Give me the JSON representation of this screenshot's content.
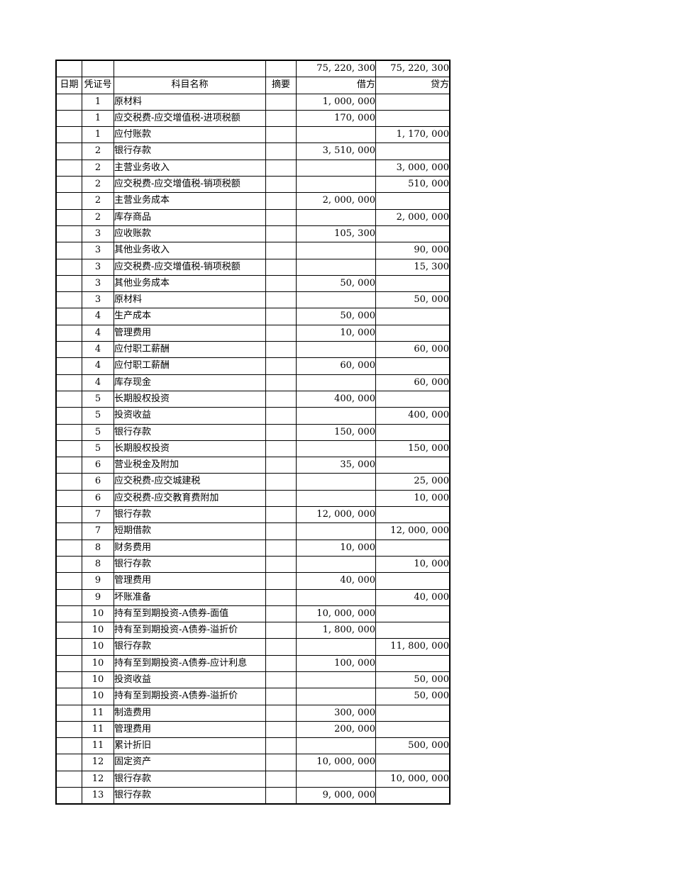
{
  "theme": {
    "background_color": "#ffffff",
    "grid_color": "#000000",
    "text_color": "#000000"
  },
  "table": {
    "totals_row": {
      "debit": "75, 220, 300",
      "credit": "75, 220, 300"
    },
    "columns": [
      {
        "key": "date",
        "label": "日期"
      },
      {
        "key": "voucher_no",
        "label": "凭证号"
      },
      {
        "key": "account",
        "label": "科目名称"
      },
      {
        "key": "summary",
        "label": "摘要"
      },
      {
        "key": "debit",
        "label": "借方"
      },
      {
        "key": "credit",
        "label": "贷方"
      }
    ],
    "rows": [
      {
        "voucher_no": "1",
        "account": "原材料",
        "debit": "1, 000, 000"
      },
      {
        "voucher_no": "1",
        "account": "应交税费-应交增值税-进项税额",
        "debit": "170, 000"
      },
      {
        "voucher_no": "1",
        "account": "应付账款",
        "credit": "1, 170, 000"
      },
      {
        "voucher_no": "2",
        "account": "银行存款",
        "debit": "3, 510, 000"
      },
      {
        "voucher_no": "2",
        "account": "主营业务收入",
        "credit": "3, 000, 000"
      },
      {
        "voucher_no": "2",
        "account": "应交税费-应交增值税-销项税额",
        "credit": "510, 000"
      },
      {
        "voucher_no": "2",
        "account": "主营业务成本",
        "debit": "2, 000, 000"
      },
      {
        "voucher_no": "2",
        "account": "库存商品",
        "credit": "2, 000, 000"
      },
      {
        "voucher_no": "3",
        "account": "应收账款",
        "debit": "105, 300"
      },
      {
        "voucher_no": "3",
        "account": "其他业务收入",
        "credit": "90, 000"
      },
      {
        "voucher_no": "3",
        "account": "应交税费-应交增值税-销项税额",
        "credit": "15, 300"
      },
      {
        "voucher_no": "3",
        "account": "其他业务成本",
        "debit": "50, 000"
      },
      {
        "voucher_no": "3",
        "account": "原材料",
        "credit": "50, 000"
      },
      {
        "voucher_no": "4",
        "account": "生产成本",
        "debit": "50, 000"
      },
      {
        "voucher_no": "4",
        "account": "管理费用",
        "debit": "10, 000"
      },
      {
        "voucher_no": "4",
        "account": "应付职工薪酬",
        "credit": "60, 000"
      },
      {
        "voucher_no": "4",
        "account": "应付职工薪酬",
        "debit": "60, 000"
      },
      {
        "voucher_no": "4",
        "account": "库存现金",
        "credit": "60, 000"
      },
      {
        "voucher_no": "5",
        "account": "长期股权投资",
        "debit": "400, 000"
      },
      {
        "voucher_no": "5",
        "account": "投资收益",
        "credit": "400, 000"
      },
      {
        "voucher_no": "5",
        "account": "银行存款",
        "debit": "150, 000"
      },
      {
        "voucher_no": "5",
        "account": "长期股权投资",
        "credit": "150, 000"
      },
      {
        "voucher_no": "6",
        "account": "营业税金及附加",
        "debit": "35, 000"
      },
      {
        "voucher_no": "6",
        "account": "应交税费-应交城建税",
        "credit": "25, 000"
      },
      {
        "voucher_no": "6",
        "account": "应交税费-应交教育费附加",
        "credit": "10, 000"
      },
      {
        "voucher_no": "7",
        "account": "银行存款",
        "debit": "12, 000, 000"
      },
      {
        "voucher_no": "7",
        "account": "短期借款",
        "credit": "12, 000, 000"
      },
      {
        "voucher_no": "8",
        "account": "财务费用",
        "debit": "10, 000"
      },
      {
        "voucher_no": "8",
        "account": "银行存款",
        "credit": "10, 000"
      },
      {
        "voucher_no": "9",
        "account": "管理费用",
        "debit": "40, 000"
      },
      {
        "voucher_no": "9",
        "account": "坏账准备",
        "credit": "40, 000"
      },
      {
        "voucher_no": "10",
        "account": "持有至到期投资-A债券-面值",
        "debit": "10, 000, 000"
      },
      {
        "voucher_no": "10",
        "account": "持有至到期投资-A债券-溢折价",
        "debit": "1, 800, 000"
      },
      {
        "voucher_no": "10",
        "account": "银行存款",
        "credit": "11, 800, 000"
      },
      {
        "voucher_no": "10",
        "account": "持有至到期投资-A债券-应计利息",
        "debit": "100, 000"
      },
      {
        "voucher_no": "10",
        "account": "投资收益",
        "credit": "50, 000"
      },
      {
        "voucher_no": "10",
        "account": "持有至到期投资-A债券-溢折价",
        "credit": "50, 000"
      },
      {
        "voucher_no": "11",
        "account": "制造费用",
        "debit": "300, 000"
      },
      {
        "voucher_no": "11",
        "account": "管理费用",
        "debit": "200, 000"
      },
      {
        "voucher_no": "11",
        "account": "累计折旧",
        "credit": "500, 000"
      },
      {
        "voucher_no": "12",
        "account": "固定资产",
        "debit": "10, 000, 000"
      },
      {
        "voucher_no": "12",
        "account": "银行存款",
        "credit": "10, 000, 000"
      },
      {
        "voucher_no": "13",
        "account": "银行存款",
        "debit": "9, 000, 000"
      }
    ]
  }
}
